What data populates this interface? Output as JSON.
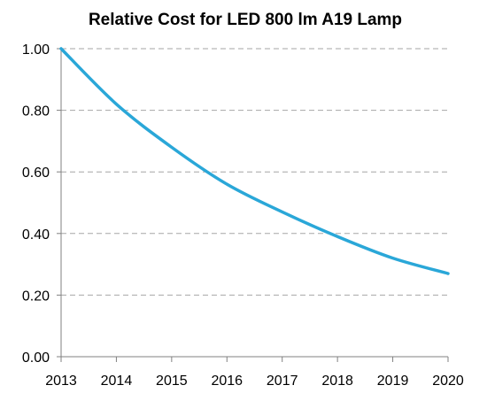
{
  "chart_data": {
    "type": "line",
    "title": "Relative Cost for LED 800 lm A19 Lamp",
    "xlabel": "",
    "ylabel": "",
    "x": [
      2013,
      2014,
      2015,
      2016,
      2017,
      2018,
      2019,
      2020
    ],
    "series": [
      {
        "values": [
          1.0,
          0.82,
          0.68,
          0.56,
          0.47,
          0.39,
          0.32,
          0.27
        ],
        "color": "#2aa7d8"
      }
    ],
    "xlim": [
      2013,
      2020
    ],
    "ylim": [
      0,
      1
    ],
    "x_tick_labels": [
      "2013",
      "2014",
      "2015",
      "2016",
      "2017",
      "2018",
      "2019",
      "2020"
    ],
    "y_tick_labels": [
      "0.00",
      "0.20",
      "0.40",
      "0.60",
      "0.80",
      "1.00"
    ],
    "grid": "horizontal-dashed",
    "legend": "none"
  }
}
